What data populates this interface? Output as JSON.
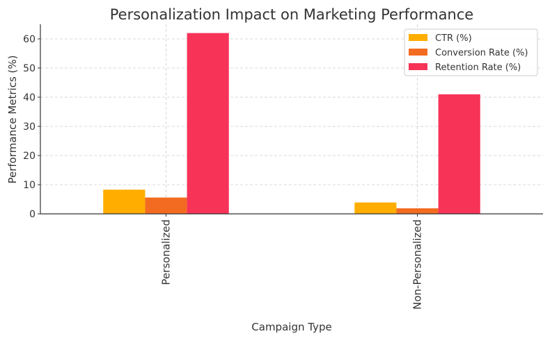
{
  "chart_data": {
    "type": "bar",
    "title": "Personalization Impact on Marketing Performance",
    "xlabel": "Campaign Type",
    "ylabel": "Performance Metrics (%)",
    "categories": [
      "Personalized",
      "Non-Personalized"
    ],
    "series": [
      {
        "name": "CTR (%)",
        "values": [
          8.3,
          3.9
        ],
        "color": "#FFAE00"
      },
      {
        "name": "Conversion Rate (%)",
        "values": [
          5.6,
          1.9
        ],
        "color": "#F26B21"
      },
      {
        "name": "Retention Rate (%)",
        "values": [
          62,
          41
        ],
        "color": "#F73358"
      }
    ],
    "ylim": [
      0,
      65
    ],
    "yticks": [
      "0",
      "10",
      "20",
      "30",
      "40",
      "50",
      "60"
    ],
    "grid": true,
    "legend": "top-right"
  }
}
